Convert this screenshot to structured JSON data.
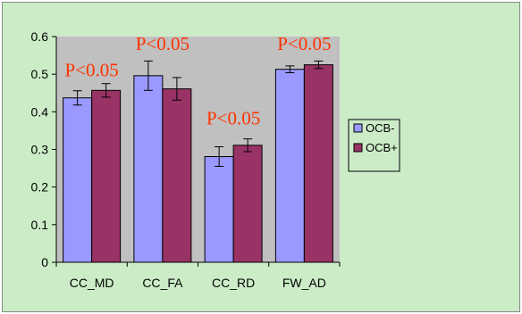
{
  "chart_data": {
    "type": "bar",
    "title": "",
    "xlabel": "",
    "ylabel": "",
    "categories": [
      "CC_MD",
      "CC_FA",
      "CC_RD",
      "FW_AD"
    ],
    "ylim": [
      0,
      0.6
    ],
    "y_ticks": [
      "0",
      "0.1",
      "0.2",
      "0.3",
      "0.4",
      "0.5",
      "0.6"
    ],
    "grid": false,
    "legend_position": "right",
    "series": [
      {
        "name": "OCB-",
        "color": "#9999ff",
        "values": [
          0.437,
          0.496,
          0.281,
          0.513
        ],
        "errors": [
          0.019,
          0.039,
          0.026,
          0.009
        ]
      },
      {
        "name": "OCB+",
        "color": "#993366",
        "values": [
          0.457,
          0.461,
          0.311,
          0.525
        ],
        "errors": [
          0.018,
          0.03,
          0.017,
          0.01
        ]
      }
    ],
    "annotations": [
      {
        "text": "P<0.05",
        "category": "CC_MD",
        "y": 0.513
      },
      {
        "text": "P<0.05",
        "category": "CC_FA",
        "y": 0.583
      },
      {
        "text": "P<0.05",
        "category": "CC_RD",
        "y": 0.385
      },
      {
        "text": "P<0.05",
        "category": "FW_AD",
        "y": 0.583
      }
    ],
    "colors": {
      "plot_background": "#c0c0c0",
      "chart_background": "#ccecc8",
      "annotation": "#ff3300"
    }
  }
}
